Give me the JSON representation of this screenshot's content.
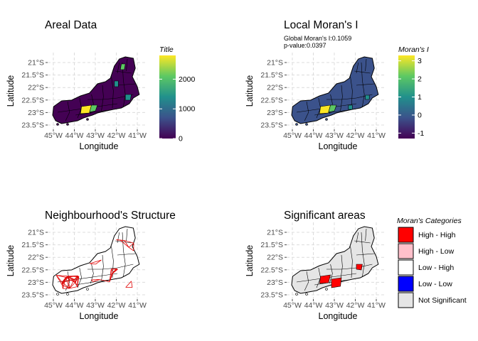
{
  "colors": {
    "grid": "#dcdcdc",
    "tick": "#4d4d4d",
    "region_fill_base": "#440154",
    "moran_fill_base": "#3b528b",
    "viridis": [
      "#440154",
      "#3b528b",
      "#21908c",
      "#5dc863",
      "#fde725"
    ],
    "neighbour_link": "#e00000"
  },
  "panels": [
    {
      "id": "areal",
      "title": "Areal Data",
      "xlabel": "Longitude",
      "ylabel": "Latitude",
      "xticks": [
        "45°W",
        "44°W",
        "43°W",
        "42°W",
        "41°W"
      ],
      "yticks": [
        "21°S",
        "21.5°S",
        "22°S",
        "22.5°S",
        "23°S",
        "23.5°S"
      ],
      "legend": {
        "title": "Title",
        "type": "colorbar",
        "range": [
          0,
          2800
        ],
        "ticks": [
          "0",
          "1000",
          "2000"
        ]
      }
    },
    {
      "id": "moran",
      "title": "Local Moran's I",
      "subtitle_lines": [
        "Global Moran's I:0.1059",
        "p-value:0.0397"
      ],
      "xlabel": "Longitude",
      "ylabel": "Latitude",
      "xticks": [
        "45°W",
        "44°W",
        "43°W",
        "42°W",
        "41°W"
      ],
      "yticks": [
        "21°S",
        "21.5°S",
        "22°S",
        "22.5°S",
        "23°S",
        "23.5°S"
      ],
      "legend": {
        "title": "Moran's I",
        "type": "colorbar",
        "range": [
          -1.3,
          3.3
        ],
        "ticks": [
          "3",
          "2",
          "1",
          "0",
          "-1"
        ]
      }
    },
    {
      "id": "neigh",
      "title": "Neighbourhood's Structure",
      "xlabel": "Longitude",
      "ylabel": "Latitude",
      "xticks": [
        "45°W",
        "44°W",
        "43°W",
        "42°W",
        "41°W"
      ],
      "yticks": [
        "21°S",
        "21.5°S",
        "22°S",
        "22.5°S",
        "23°S",
        "23.5°S"
      ]
    },
    {
      "id": "signif",
      "title": "Significant areas",
      "xlabel": "Longitude",
      "ylabel": "Latitude",
      "xticks": [
        "45°W",
        "44°W",
        "43°W",
        "42°W",
        "41°W"
      ],
      "yticks": [
        "21°S",
        "21.5°S",
        "22°S",
        "22.5°S",
        "23°S",
        "23.5°S"
      ],
      "legend": {
        "title": "Moran's Categories",
        "type": "categorical",
        "items": [
          {
            "label": "High - High",
            "color": "#ff0000"
          },
          {
            "label": "High - Low",
            "color": "#ffc0cb"
          },
          {
            "label": "Low - High",
            "color": "#ffffff"
          },
          {
            "label": "Low - Low",
            "color": "#0000ff"
          },
          {
            "label": "Not Significant",
            "color": "#e5e5e5"
          }
        ]
      }
    }
  ],
  "chart_data": [
    {
      "type": "heatmap",
      "title": "Areal Data",
      "xlabel": "Longitude",
      "ylabel": "Latitude",
      "xlim": [
        -45,
        -41
      ],
      "ylim": [
        -23.5,
        -21
      ],
      "color_scale": "viridis",
      "legend_title": "Title",
      "value_range": [
        0,
        2800
      ]
    },
    {
      "type": "heatmap",
      "title": "Local Moran's I",
      "annotations": [
        "Global Moran's I:0.1059",
        "p-value:0.0397"
      ],
      "xlabel": "Longitude",
      "ylabel": "Latitude",
      "xlim": [
        -45,
        -41
      ],
      "ylim": [
        -23.5,
        -21
      ],
      "color_scale": "viridis",
      "legend_title": "Moran's I",
      "value_range": [
        -1.3,
        3.3
      ]
    },
    {
      "type": "heatmap",
      "title": "Neighbourhood's Structure",
      "xlabel": "Longitude",
      "ylabel": "Latitude",
      "xlim": [
        -45,
        -41
      ],
      "ylim": [
        -23.5,
        -21
      ]
    },
    {
      "type": "heatmap",
      "title": "Significant areas",
      "xlabel": "Longitude",
      "ylabel": "Latitude",
      "xlim": [
        -45,
        -41
      ],
      "ylim": [
        -23.5,
        -21
      ],
      "legend_title": "Moran's Categories",
      "categories": [
        "High - High",
        "High - Low",
        "Low - High",
        "Low - Low",
        "Not Significant"
      ],
      "highlighted": [
        {
          "lon": -43.5,
          "lat": -22.6,
          "category": "High - High"
        },
        {
          "lon": -42.8,
          "lat": -22.9,
          "category": "High - High"
        },
        {
          "lon": -41.9,
          "lat": -22.35,
          "category": "High - High"
        }
      ]
    }
  ]
}
